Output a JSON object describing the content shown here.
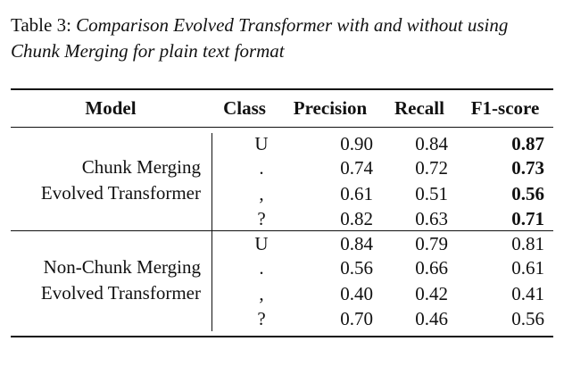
{
  "caption": {
    "label": "Table 3:",
    "text": "Comparison Evolved Transformer with and without using Chunk Merging for plain text format"
  },
  "table": {
    "headers": [
      "Model",
      "Class",
      "Precision",
      "Recall",
      "F1-score"
    ],
    "groups": [
      {
        "model_line1": "Chunk Merging",
        "model_line2": "Evolved Transformer",
        "rows": [
          {
            "class": "U",
            "precision": "0.90",
            "recall": "0.84",
            "f1": "0.87",
            "f1_bold": true
          },
          {
            "class": ".",
            "precision": "0.74",
            "recall": "0.72",
            "f1": "0.73",
            "f1_bold": true
          },
          {
            "class": ",",
            "precision": "0.61",
            "recall": "0.51",
            "f1": "0.56",
            "f1_bold": true
          },
          {
            "class": "?",
            "precision": "0.82",
            "recall": "0.63",
            "f1": "0.71",
            "f1_bold": true
          }
        ]
      },
      {
        "model_line1": "Non-Chunk Merging",
        "model_line2": "Evolved Transformer",
        "rows": [
          {
            "class": "U",
            "precision": "0.84",
            "recall": "0.79",
            "f1": "0.81",
            "f1_bold": false
          },
          {
            "class": ".",
            "precision": "0.56",
            "recall": "0.66",
            "f1": "0.61",
            "f1_bold": false
          },
          {
            "class": ",",
            "precision": "0.40",
            "recall": "0.42",
            "f1": "0.41",
            "f1_bold": false
          },
          {
            "class": "?",
            "precision": "0.70",
            "recall": "0.46",
            "f1": "0.56",
            "f1_bold": false
          }
        ]
      }
    ]
  }
}
